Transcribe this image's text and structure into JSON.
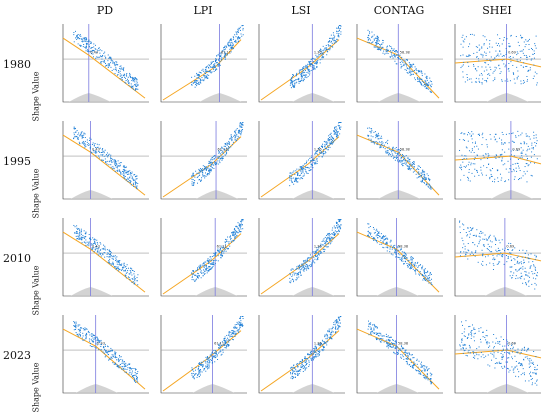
{
  "columns": [
    "PD",
    "LPI",
    "LSI",
    "CONTAG",
    "SHEI"
  ],
  "rows": [
    "1980",
    "1995",
    "2010",
    "2023"
  ],
  "ylabel": "Shape Value",
  "colors": {
    "points": "#1f7fd6",
    "trend": "#f5a623",
    "baseline": "#9a9a9a",
    "marker": "#7a7adf",
    "density": "#c8c8c8",
    "axis": "#333333"
  },
  "chart_data": {
    "type": "scatter",
    "description_kind": "SHAP dependence plots",
    "ylabel": "Shape Value",
    "panels": [
      {
        "row": "1980",
        "col": "PD",
        "trend": "down",
        "marker": 0.3,
        "label": "0.43"
      },
      {
        "row": "1980",
        "col": "LPI",
        "trend": "up",
        "marker": 0.68,
        "label": "61.11"
      },
      {
        "row": "1980",
        "col": "LSI",
        "trend": "up",
        "marker": 0.62,
        "label": "1.36"
      },
      {
        "row": "1980",
        "col": "CONTAG",
        "trend": "down",
        "marker": 0.48,
        "label": "58.38"
      },
      {
        "row": "1980",
        "col": "SHEI",
        "trend": "noisy",
        "marker": 0.6,
        "label": "0.69"
      },
      {
        "row": "1995",
        "col": "PD",
        "trend": "down",
        "marker": 0.32,
        "label": "0.43"
      },
      {
        "row": "1995",
        "col": "LPI",
        "trend": "up",
        "marker": 0.64,
        "label": "61.11"
      },
      {
        "row": "1995",
        "col": "LSI",
        "trend": "up",
        "marker": 0.62,
        "label": "1.36"
      },
      {
        "row": "1995",
        "col": "CONTAG",
        "trend": "down",
        "marker": 0.48,
        "label": "58.38"
      },
      {
        "row": "1995",
        "col": "SHEI",
        "trend": "noisy",
        "marker": 0.65,
        "label": "0.69"
      },
      {
        "row": "2010",
        "col": "PD",
        "trend": "down",
        "marker": 0.32,
        "label": "0.43"
      },
      {
        "row": "2010",
        "col": "LPI",
        "trend": "up",
        "marker": 0.63,
        "label": "61.11"
      },
      {
        "row": "2010",
        "col": "LSI",
        "trend": "up",
        "marker": 0.62,
        "label": "1.36"
      },
      {
        "row": "2010",
        "col": "CONTAG",
        "trend": "down",
        "marker": 0.46,
        "label": "58.38"
      },
      {
        "row": "2010",
        "col": "SHEI",
        "trend": "noisydown",
        "marker": 0.58,
        "label": "0.69"
      },
      {
        "row": "2023",
        "col": "PD",
        "trend": "down",
        "marker": 0.38,
        "label": "0.43"
      },
      {
        "row": "2023",
        "col": "LPI",
        "trend": "up",
        "marker": 0.6,
        "label": "61.11"
      },
      {
        "row": "2023",
        "col": "LSI",
        "trend": "up",
        "marker": 0.62,
        "label": "1.36"
      },
      {
        "row": "2023",
        "col": "CONTAG",
        "trend": "down",
        "marker": 0.46,
        "label": "58.38"
      },
      {
        "row": "2023",
        "col": "SHEI",
        "trend": "noisydown",
        "marker": 0.6,
        "label": "0.69"
      }
    ]
  }
}
